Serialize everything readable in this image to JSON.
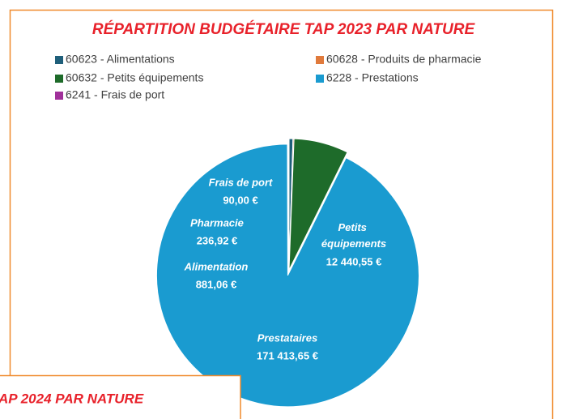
{
  "chart_data": {
    "type": "pie",
    "title": "RÉPARTITION BUDGÉTAIRE TAP 2023 PAR NATURE",
    "categories": [
      "60623 - Alimentations",
      "60628 - Produits de pharmacie",
      "60632 - Petits équipements",
      "6228 - Prestations",
      "6241 - Frais de port"
    ],
    "values": [
      881.06,
      236.92,
      12440.55,
      171413.65,
      90.0
    ],
    "value_labels": [
      "881,06 €",
      "236,92 €",
      "12 440,55 €",
      "171 413,65 €",
      "90,00 €"
    ],
    "slice_labels": [
      "Alimentation",
      "Pharmacie",
      "Petits équipements",
      "Prestataires",
      "Frais de port"
    ],
    "colors": [
      "#1f5f7a",
      "#e07a3c",
      "#1e6b2a",
      "#1a9bd0",
      "#a0309a"
    ],
    "legend": "top"
  },
  "partial_panel": {
    "title": "AP 2024 PAR NATURE"
  }
}
